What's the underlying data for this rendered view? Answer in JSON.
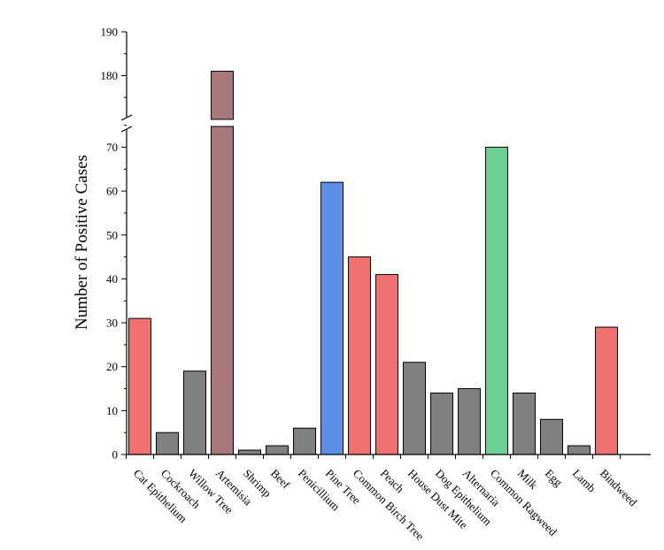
{
  "chart_data": {
    "type": "bar",
    "title": "",
    "xlabel": "",
    "ylabel": "Number of Positive Cases",
    "axis_break": {
      "lower_range": [
        0,
        75
      ],
      "upper_range": [
        170,
        190
      ]
    },
    "y_ticks_lower": [
      0,
      10,
      20,
      30,
      40,
      50,
      60,
      70
    ],
    "y_ticks_upper": [
      180,
      190
    ],
    "grid": false,
    "categories": [
      "Cat Epithelium",
      "Cockroach",
      "Willow Tree",
      "Artemisia",
      "Shrimp",
      "Beef",
      "Penicillium",
      "Pine Tree",
      "Common Birch Tree",
      "Peach",
      "House Dust Mite",
      "Dog Epithelium",
      "Alternaria",
      "Common Ragweed",
      "Milk",
      "Egg",
      "Lamb",
      "Bindweed"
    ],
    "values": [
      31,
      5,
      19,
      181,
      1,
      2,
      6,
      62,
      45,
      41,
      21,
      14,
      15,
      70,
      14,
      8,
      2,
      29
    ],
    "colors": [
      "#f07070",
      "#808080",
      "#808080",
      "#a87878",
      "#808080",
      "#808080",
      "#808080",
      "#5b8ee6",
      "#f07070",
      "#f07070",
      "#808080",
      "#808080",
      "#808080",
      "#6ccf94",
      "#808080",
      "#808080",
      "#808080",
      "#f07070"
    ]
  }
}
